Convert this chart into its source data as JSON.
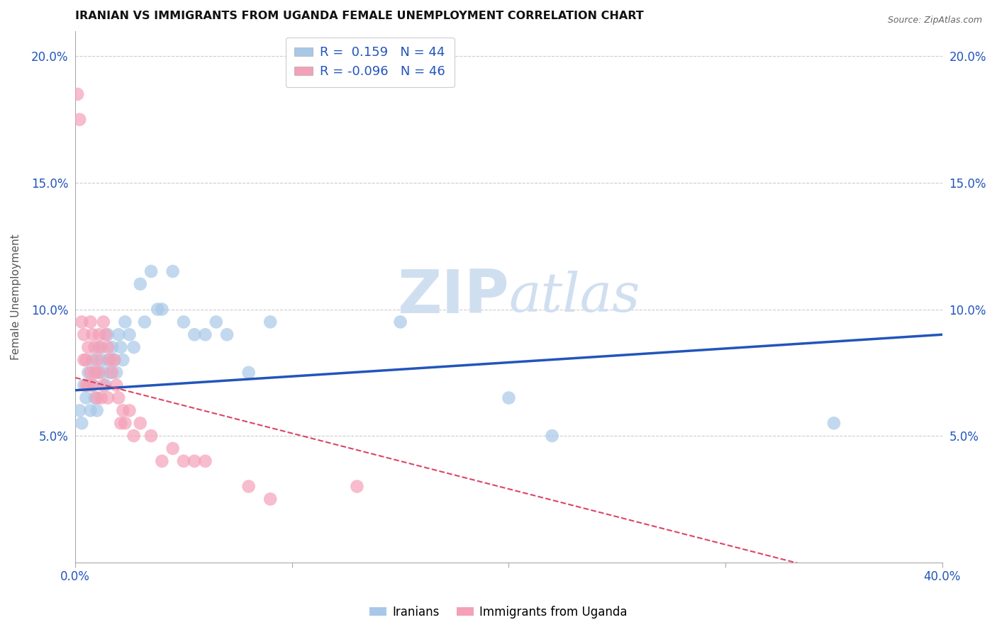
{
  "title": "IRANIAN VS IMMIGRANTS FROM UGANDA FEMALE UNEMPLOYMENT CORRELATION CHART",
  "source": "Source: ZipAtlas.com",
  "ylabel": "Female Unemployment",
  "xlim": [
    0.0,
    0.4
  ],
  "ylim": [
    0.0,
    0.21
  ],
  "xticks": [
    0.0,
    0.1,
    0.2,
    0.3,
    0.4
  ],
  "yticks": [
    0.0,
    0.05,
    0.1,
    0.15,
    0.2
  ],
  "ytick_labels_left": [
    "",
    "5.0%",
    "10.0%",
    "15.0%",
    "20.0%"
  ],
  "ytick_labels_right": [
    "",
    "5.0%",
    "10.0%",
    "15.0%",
    "20.0%"
  ],
  "xtick_labels": [
    "0.0%",
    "",
    "",
    "",
    "40.0%"
  ],
  "legend_label1": "Iranians",
  "legend_label2": "Immigrants from Uganda",
  "blue_color": "#a8c8e8",
  "pink_color": "#f4a0b8",
  "blue_line_color": "#2255bb",
  "pink_line_color": "#dd4466",
  "watermark_color": "#d0dff0",
  "background_color": "#ffffff",
  "grid_color": "#cccccc",
  "R_blue": 0.159,
  "N_blue": 44,
  "R_pink": -0.096,
  "N_pink": 46,
  "blue_intercept": 0.068,
  "blue_slope": 0.055,
  "pink_intercept": 0.073,
  "pink_slope": -0.22,
  "blue_x": [
    0.002,
    0.003,
    0.004,
    0.005,
    0.006,
    0.007,
    0.008,
    0.008,
    0.009,
    0.01,
    0.01,
    0.011,
    0.012,
    0.013,
    0.014,
    0.015,
    0.015,
    0.016,
    0.017,
    0.018,
    0.019,
    0.02,
    0.021,
    0.022,
    0.023,
    0.025,
    0.027,
    0.03,
    0.032,
    0.035,
    0.038,
    0.04,
    0.045,
    0.05,
    0.055,
    0.06,
    0.065,
    0.07,
    0.08,
    0.09,
    0.15,
    0.2,
    0.22,
    0.35
  ],
  "blue_y": [
    0.06,
    0.055,
    0.07,
    0.065,
    0.075,
    0.06,
    0.08,
    0.07,
    0.065,
    0.075,
    0.06,
    0.085,
    0.08,
    0.075,
    0.07,
    0.09,
    0.08,
    0.075,
    0.085,
    0.08,
    0.075,
    0.09,
    0.085,
    0.08,
    0.095,
    0.09,
    0.085,
    0.11,
    0.095,
    0.115,
    0.1,
    0.1,
    0.115,
    0.095,
    0.09,
    0.09,
    0.095,
    0.09,
    0.075,
    0.095,
    0.095,
    0.065,
    0.05,
    0.055
  ],
  "pink_x": [
    0.001,
    0.002,
    0.003,
    0.004,
    0.004,
    0.005,
    0.005,
    0.006,
    0.006,
    0.007,
    0.007,
    0.008,
    0.008,
    0.009,
    0.009,
    0.01,
    0.01,
    0.011,
    0.011,
    0.012,
    0.012,
    0.013,
    0.013,
    0.014,
    0.015,
    0.015,
    0.016,
    0.017,
    0.018,
    0.019,
    0.02,
    0.021,
    0.022,
    0.023,
    0.025,
    0.027,
    0.03,
    0.035,
    0.04,
    0.045,
    0.05,
    0.055,
    0.06,
    0.08,
    0.09,
    0.13
  ],
  "pink_y": [
    0.185,
    0.175,
    0.095,
    0.09,
    0.08,
    0.08,
    0.07,
    0.085,
    0.07,
    0.095,
    0.075,
    0.09,
    0.07,
    0.085,
    0.075,
    0.08,
    0.065,
    0.09,
    0.075,
    0.085,
    0.065,
    0.095,
    0.07,
    0.09,
    0.085,
    0.065,
    0.08,
    0.075,
    0.08,
    0.07,
    0.065,
    0.055,
    0.06,
    0.055,
    0.06,
    0.05,
    0.055,
    0.05,
    0.04,
    0.045,
    0.04,
    0.04,
    0.04,
    0.03,
    0.025,
    0.03
  ]
}
